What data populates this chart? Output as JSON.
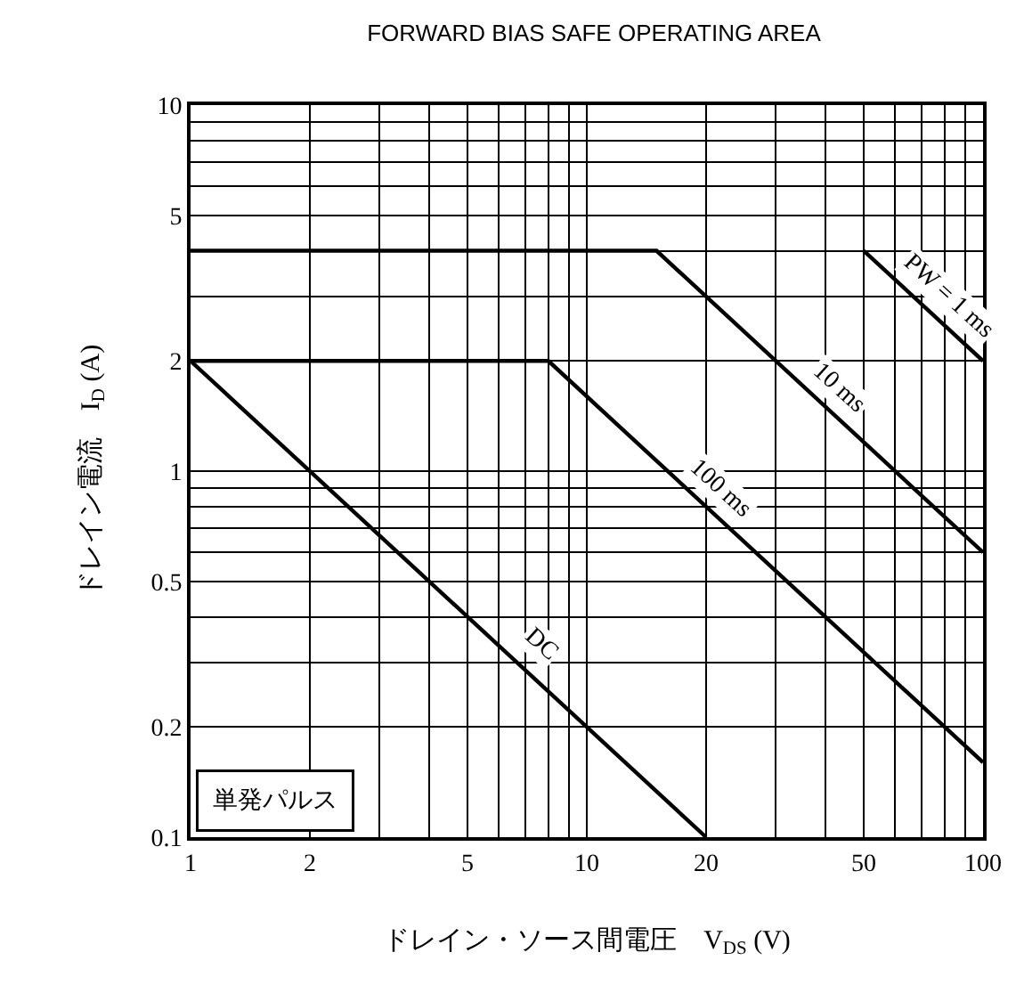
{
  "chart_data": {
    "type": "line",
    "title": "FORWARD BIAS SAFE OPERATING AREA",
    "xlabel": "ドレイン・ソース間電圧　V$_{DS}$ (V)",
    "ylabel": "ドレイン電流　I$_{D}$ (A)",
    "log": "xy",
    "grid": true,
    "marker": "none",
    "line_style": "solid",
    "xlim": [
      1,
      100
    ],
    "ylim": [
      0.1,
      10
    ],
    "xticks": [
      1,
      2,
      {
        "value": 3,
        "label": null
      },
      {
        "value": 4,
        "label": null
      },
      5,
      {
        "value": 6,
        "label": null
      },
      {
        "value": 7,
        "label": null
      },
      {
        "value": 8,
        "label": null
      },
      {
        "value": 9,
        "label": null
      },
      10,
      20,
      {
        "value": 30,
        "label": null
      },
      {
        "value": 40,
        "label": null
      },
      50,
      {
        "value": 60,
        "label": null
      },
      {
        "value": 70,
        "label": null
      },
      {
        "value": 80,
        "label": null
      },
      {
        "value": 90,
        "label": null
      },
      100
    ],
    "yticks": [
      0.1,
      0.2,
      {
        "value": 0.3,
        "label": null
      },
      {
        "value": 0.4,
        "label": null
      },
      0.5,
      {
        "value": 0.6,
        "label": null
      },
      {
        "value": 0.7,
        "label": null
      },
      {
        "value": 0.8,
        "label": null
      },
      {
        "value": 0.9,
        "label": null
      },
      1,
      2,
      {
        "value": 3,
        "label": null
      },
      {
        "value": 4,
        "label": null
      },
      5,
      {
        "value": 6,
        "label": null
      },
      {
        "value": 7,
        "label": null
      },
      {
        "value": 8,
        "label": null
      },
      {
        "value": 9,
        "label": null
      },
      10
    ],
    "series": [
      {
        "color": "#000000",
        "x": [
          1,
          20
        ],
        "values": [
          2,
          0.1
        ]
      },
      {
        "color": "#000000",
        "x": [
          1,
          8,
          100
        ],
        "values": [
          2,
          2,
          0.16
        ]
      },
      {
        "color": "#000000",
        "x": [
          1,
          15,
          100
        ],
        "values": [
          4,
          4,
          0.6
        ]
      },
      {
        "color": "#000000",
        "x": [
          50,
          100
        ],
        "values": [
          4,
          2
        ]
      }
    ],
    "annotations": [
      {
        "text": "DC",
        "x": 7,
        "y": 0.3
      },
      {
        "text": "100 ms",
        "x": 20,
        "y": 0.8
      },
      {
        "text": "10 ms",
        "x": 40,
        "y": 1.5
      },
      {
        "text": "PW = 1 ms",
        "x": 75,
        "y": 2.67
      },
      "単発パルス"
    ]
  }
}
